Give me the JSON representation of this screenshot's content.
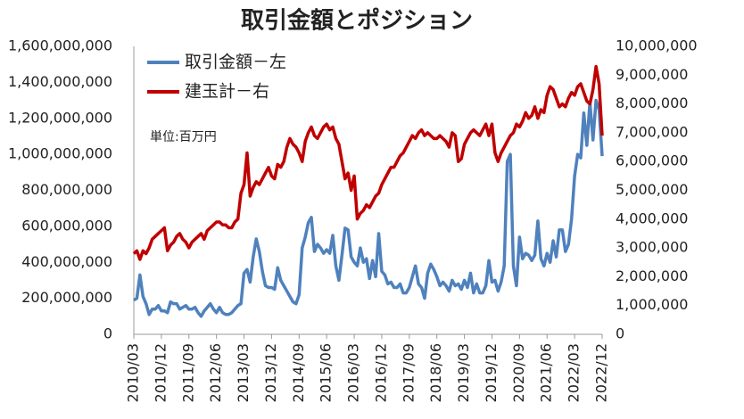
{
  "chart_data": {
    "type": "line",
    "title": "取引金額とポジション",
    "annotation": "単位:百万円",
    "legend": "top-left",
    "grid": false,
    "categories": [
      "2010/03",
      null,
      null,
      null,
      null,
      null,
      null,
      null,
      null,
      "2010/12",
      null,
      null,
      null,
      null,
      null,
      null,
      null,
      null,
      "2011/09",
      null,
      null,
      null,
      null,
      null,
      null,
      null,
      null,
      "2012/06",
      null,
      null,
      null,
      null,
      null,
      null,
      null,
      null,
      "2013/03",
      null,
      null,
      null,
      null,
      null,
      null,
      null,
      null,
      "2013/12",
      null,
      null,
      null,
      null,
      null,
      null,
      null,
      null,
      "2014/09",
      null,
      null,
      null,
      null,
      null,
      null,
      null,
      null,
      "2015/06",
      null,
      null,
      null,
      null,
      null,
      null,
      null,
      null,
      "2016/03",
      null,
      null,
      null,
      null,
      null,
      null,
      null,
      null,
      "2016/12",
      null,
      null,
      null,
      null,
      null,
      null,
      null,
      null,
      "2017/09",
      null,
      null,
      null,
      null,
      null,
      null,
      null,
      null,
      "2018/06",
      null,
      null,
      null,
      null,
      null,
      null,
      null,
      null,
      "2019/03",
      null,
      null,
      null,
      null,
      null,
      null,
      null,
      null,
      "2019/12",
      null,
      null,
      null,
      null,
      null,
      null,
      null,
      null,
      "2020/09",
      null,
      null,
      null,
      null,
      null,
      null,
      null,
      null,
      "2021/06",
      null,
      null,
      null,
      null,
      null,
      null,
      null,
      null,
      "2022/03",
      null,
      null,
      null,
      null,
      null,
      null,
      null,
      null,
      "2022/12"
    ],
    "ylim": [
      0,
      1600000000
    ],
    "yticks": [
      0,
      {
        "value": 200000000,
        "label": "200,000,000"
      },
      {
        "value": 400000000,
        "label": "400,000,000"
      },
      {
        "value": 600000000,
        "label": "600,000,000"
      },
      {
        "value": 800000000,
        "label": "800,000,000"
      },
      {
        "value": 1000000000,
        "label": "1,000,000,000"
      },
      {
        "value": 1200000000,
        "label": "1,200,000,000"
      },
      {
        "value": 1400000000,
        "label": "1,400,000,000"
      },
      {
        "value": 1600000000,
        "label": "1,600,000,000"
      }
    ],
    "y2lim": [
      0,
      10000000
    ],
    "y2ticks": [
      0,
      {
        "value": 1000000,
        "label": "1,000,000"
      },
      {
        "value": 2000000,
        "label": "2,000,000"
      },
      {
        "value": 3000000,
        "label": "3,000,000"
      },
      {
        "value": 4000000,
        "label": "4,000,000"
      },
      {
        "value": 5000000,
        "label": "5,000,000"
      },
      {
        "value": 6000000,
        "label": "6,000,000"
      },
      {
        "value": 7000000,
        "label": "7,000,000"
      },
      {
        "value": 8000000,
        "label": "8,000,000"
      },
      {
        "value": 9000000,
        "label": "9,000,000"
      },
      {
        "value": 10000000,
        "label": "10,000,000"
      }
    ],
    "series": [
      {
        "name": "取引金額－左",
        "color": "#4f81bd",
        "values": [
          190000000,
          200000000,
          330000000,
          210000000,
          170000000,
          110000000,
          140000000,
          140000000,
          160000000,
          130000000,
          130000000,
          120000000,
          180000000,
          170000000,
          170000000,
          140000000,
          150000000,
          160000000,
          140000000,
          140000000,
          150000000,
          120000000,
          100000000,
          130000000,
          150000000,
          170000000,
          140000000,
          120000000,
          150000000,
          120000000,
          110000000,
          110000000,
          120000000,
          140000000,
          160000000,
          170000000,
          340000000,
          360000000,
          290000000,
          430000000,
          530000000,
          460000000,
          350000000,
          270000000,
          260000000,
          260000000,
          250000000,
          370000000,
          300000000,
          270000000,
          240000000,
          210000000,
          180000000,
          170000000,
          220000000,
          480000000,
          540000000,
          620000000,
          650000000,
          460000000,
          500000000,
          480000000,
          450000000,
          470000000,
          450000000,
          550000000,
          380000000,
          300000000,
          440000000,
          590000000,
          580000000,
          430000000,
          400000000,
          380000000,
          480000000,
          400000000,
          420000000,
          310000000,
          410000000,
          320000000,
          560000000,
          350000000,
          330000000,
          280000000,
          290000000,
          260000000,
          260000000,
          280000000,
          230000000,
          230000000,
          260000000,
          320000000,
          380000000,
          280000000,
          260000000,
          200000000,
          340000000,
          390000000,
          360000000,
          320000000,
          270000000,
          290000000,
          270000000,
          240000000,
          300000000,
          270000000,
          280000000,
          250000000,
          300000000,
          260000000,
          340000000,
          230000000,
          280000000,
          230000000,
          230000000,
          270000000,
          410000000,
          290000000,
          300000000,
          240000000,
          290000000,
          380000000,
          960000000,
          1000000000,
          380000000,
          270000000,
          540000000,
          420000000,
          450000000,
          440000000,
          410000000,
          440000000,
          630000000,
          420000000,
          380000000,
          450000000,
          400000000,
          520000000,
          430000000,
          580000000,
          580000000,
          460000000,
          500000000,
          640000000,
          880000000,
          1000000000,
          980000000,
          1230000000,
          1050000000,
          1290000000,
          1080000000,
          1300000000,
          1250000000,
          990000000
        ]
      },
      {
        "name": "建玉計－右",
        "color": "#c00000",
        "axis": "y2",
        "values": [
          2800000,
          2900000,
          2600000,
          2900000,
          2800000,
          3000000,
          3300000,
          3400000,
          3500000,
          3600000,
          3700000,
          2900000,
          3100000,
          3200000,
          3400000,
          3500000,
          3300000,
          3200000,
          3000000,
          3200000,
          3300000,
          3400000,
          3500000,
          3300000,
          3600000,
          3700000,
          3800000,
          3900000,
          3900000,
          3800000,
          3800000,
          3700000,
          3700000,
          3900000,
          4000000,
          4900000,
          5200000,
          6300000,
          4800000,
          5100000,
          5300000,
          5200000,
          5400000,
          5600000,
          5800000,
          5500000,
          5400000,
          5900000,
          5800000,
          6000000,
          6500000,
          6800000,
          6600000,
          6500000,
          6300000,
          6000000,
          6700000,
          7000000,
          7200000,
          6900000,
          6800000,
          7000000,
          7200000,
          7300000,
          7100000,
          7200000,
          6800000,
          6600000,
          6000000,
          5400000,
          5600000,
          5000000,
          5500000,
          4000000,
          4200000,
          4300000,
          4500000,
          4400000,
          4600000,
          4800000,
          4900000,
          5200000,
          5400000,
          5600000,
          5800000,
          5800000,
          6000000,
          6200000,
          6300000,
          6500000,
          6700000,
          6900000,
          6800000,
          7000000,
          7100000,
          6900000,
          7000000,
          6900000,
          6800000,
          6800000,
          6900000,
          6800000,
          6700000,
          6500000,
          7000000,
          6900000,
          6000000,
          6100000,
          6600000,
          6800000,
          7000000,
          7100000,
          7000000,
          6900000,
          7100000,
          7300000,
          6900000,
          7300000,
          6300000,
          6000000,
          6300000,
          6500000,
          6700000,
          6900000,
          7000000,
          7300000,
          7200000,
          7400000,
          7700000,
          7500000,
          7600000,
          7900000,
          7500000,
          7800000,
          7700000,
          8300000,
          8600000,
          8500000,
          8200000,
          7900000,
          8000000,
          7900000,
          8200000,
          8400000,
          8300000,
          8600000,
          8700000,
          8400000,
          8100000,
          8000000,
          8500000,
          9300000,
          8700000,
          6900000
        ]
      }
    ]
  }
}
